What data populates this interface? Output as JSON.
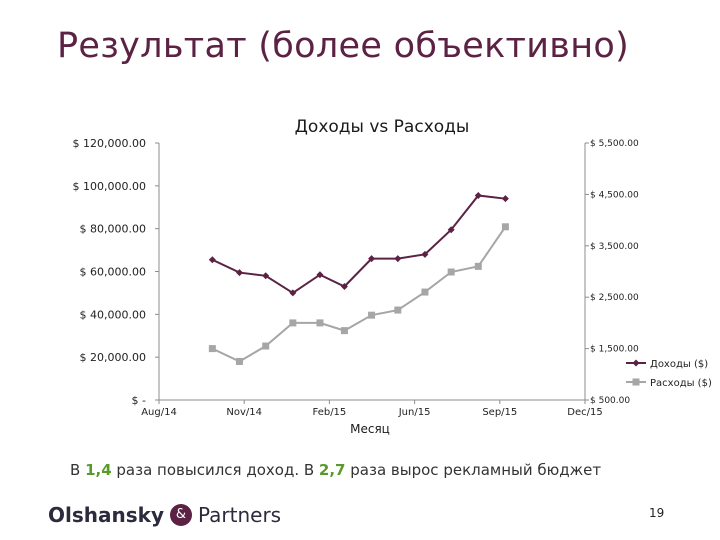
{
  "slide": {
    "title": "Результат (более объективно)",
    "caption_parts": [
      "В ",
      "1,4",
      " раза повысился доход. В ",
      "2,7",
      " раза вырос рекламный бюджет"
    ],
    "logo_part1": "Olshansky",
    "logo_amp": "&",
    "logo_part2": "Partners",
    "page_number": "19",
    "colors": {
      "title": "#5b2244",
      "highlight": "#5a9a2b",
      "revenue": "#5b2244",
      "expenses": "#a6a6a6"
    }
  },
  "chart_data": {
    "type": "line",
    "title": "Доходы vs Расходы",
    "xlabel": "Месяц",
    "x_tick_labels": [
      "Aug/14",
      "Nov/14",
      "Feb/15",
      "Jun/15",
      "Sep/15",
      "Dec/15"
    ],
    "x_range": [
      "2014-08-01",
      "2015-12-01"
    ],
    "x": [
      "2014-10-01",
      "2014-11-01",
      "2014-12-01",
      "2015-01-01",
      "2015-02-01",
      "2015-03-01",
      "2015-04-01",
      "2015-05-01",
      "2015-06-01",
      "2015-07-01",
      "2015-08-01",
      "2015-09-01"
    ],
    "left_axis": {
      "ylim": [
        0,
        120000
      ],
      "tick_values": [
        0,
        20000,
        40000,
        60000,
        80000,
        100000,
        120000
      ],
      "tick_labels": [
        "$ -",
        "$ 20,000.00",
        "$ 40,000.00",
        "$ 60,000.00",
        "$ 80,000.00",
        "$ 100,000.00",
        "$ 120,000.00"
      ]
    },
    "right_axis": {
      "ylim": [
        500,
        5500
      ],
      "tick_values": [
        500,
        1500,
        2500,
        3500,
        4500,
        5500
      ],
      "tick_labels": [
        "$ 500.00",
        "$ 1,500.00",
        "$ 2,500.00",
        "$ 3,500.00",
        "$ 4,500.00",
        "$ 5,500.00"
      ]
    },
    "series": [
      {
        "name": "Доходы ($)",
        "axis": "left",
        "marker": "diamond",
        "color": "#5b2244",
        "values": [
          65500,
          59500,
          58000,
          50000,
          58500,
          53000,
          66000,
          66000,
          68000,
          79500,
          95500,
          94000
        ]
      },
      {
        "name": "Расходы ($)",
        "axis": "right",
        "marker": "square",
        "color": "#a6a6a6",
        "values": [
          1500,
          1250,
          1550,
          2000,
          2000,
          1850,
          2150,
          2250,
          2600,
          2990,
          3100,
          3870
        ]
      }
    ],
    "legend": "right",
    "grid": false
  }
}
